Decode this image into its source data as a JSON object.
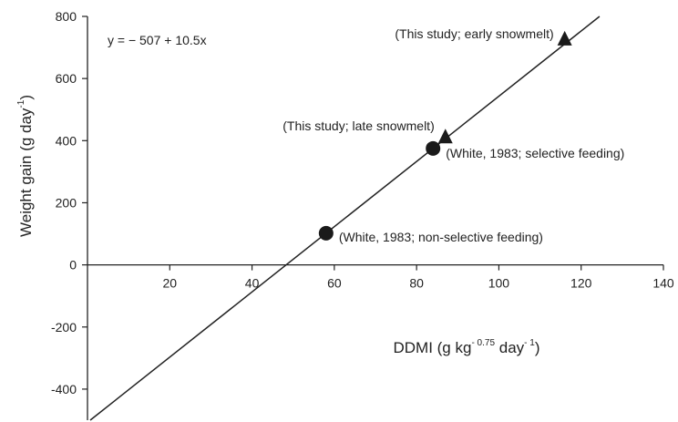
{
  "chart_data": {
    "type": "scatter",
    "equation": "y = − 507 + 10.5x",
    "xlabel": {
      "main": "DDMI (g kg",
      "sup1": "- 0.75",
      "mid": " day",
      "sup2": "- 1",
      "end": ")"
    },
    "ylabel": {
      "main": "Weight gain (g day",
      "sup": "-1",
      "end": ")"
    },
    "xlim": [
      0,
      140
    ],
    "ylim": [
      -500,
      800
    ],
    "xticks": [
      20,
      40,
      60,
      80,
      100,
      120,
      140
    ],
    "yticks": [
      -400,
      -200,
      0,
      200,
      400,
      600,
      800
    ],
    "regression": {
      "intercept": -507,
      "slope": 10.5
    },
    "series": [
      {
        "marker": "circle",
        "points": [
          {
            "x": 58,
            "y": 102,
            "label": "(White, 1983; non-selective feeding)"
          },
          {
            "x": 84,
            "y": 375,
            "label": "(White, 1983; selective feeding)"
          }
        ]
      },
      {
        "marker": "triangle",
        "points": [
          {
            "x": 87,
            "y": 412,
            "label": "(This study; late snowmelt)"
          },
          {
            "x": 116,
            "y": 727,
            "label": "(This study; early snowmelt)"
          }
        ]
      }
    ],
    "grid": false,
    "legend": "none"
  }
}
